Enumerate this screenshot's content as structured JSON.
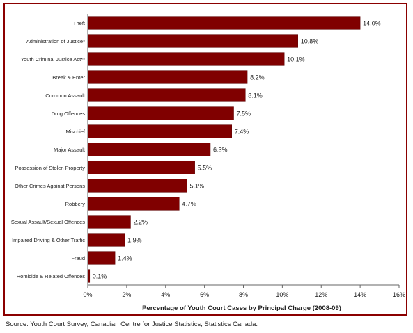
{
  "chart_data": {
    "type": "bar",
    "orientation": "horizontal",
    "categories": [
      "Theft",
      "Administration of Justice*",
      "Youth Criminal Justice Act**",
      "Break & Enter",
      "Common Assault",
      "Drug Offences",
      "Mischief",
      "Major Assault",
      "Possession of Stolen Property",
      "Other Crimes Against Persons",
      "Robbery",
      "Sexual Assault/Sexual Offences",
      "Impaired Driving & Other Traffic",
      "Fraud",
      "Homicide & Related Offences"
    ],
    "values": [
      14.0,
      10.8,
      10.1,
      8.2,
      8.1,
      7.5,
      7.4,
      6.3,
      5.5,
      5.1,
      4.7,
      2.2,
      1.9,
      1.4,
      0.1
    ],
    "data_labels": [
      "14.0%",
      "10.8%",
      "10.1%",
      "8.2%",
      "8.1%",
      "7.5%",
      "7.4%",
      "6.3%",
      "5.5%",
      "5.1%",
      "4.7%",
      "2.2%",
      "1.9%",
      "1.4%",
      "0.1%"
    ],
    "xlabel": "Percentage of Youth Court Cases by Principal Charge (2008-09)",
    "xlim": [
      0,
      16
    ],
    "xticks": [
      0,
      2,
      4,
      6,
      8,
      10,
      12,
      14,
      16
    ],
    "xtick_labels": [
      "0%",
      "2%",
      "4%",
      "6%",
      "8%",
      "10%",
      "12%",
      "14%",
      "16%"
    ],
    "grid": false,
    "legend": "none",
    "bar_color": "#800000",
    "frame_color": "#8b0000"
  },
  "source": "Source:  Youth Court Survey, Canadian Centre for Justice Statistics, Statistics Canada."
}
